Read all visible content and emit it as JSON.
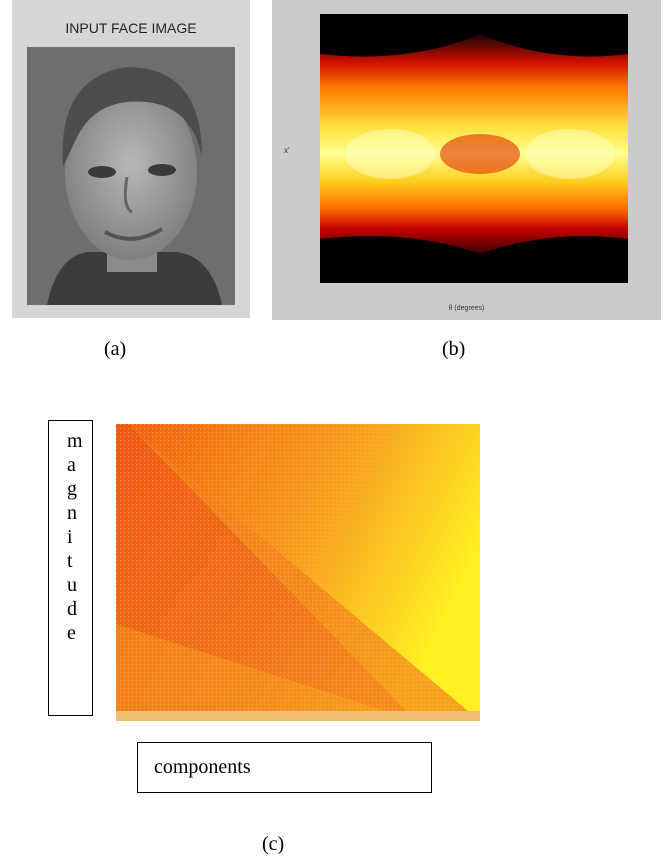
{
  "panels": [
    {
      "title": "INPUT FACE IMAGE",
      "caption": "(a)"
    },
    {
      "x_label": "θ (degrees)",
      "y_label": "x'",
      "caption": "(b)"
    },
    {
      "y_label": "magnitude",
      "x_label": "components",
      "caption": "(c)"
    }
  ]
}
